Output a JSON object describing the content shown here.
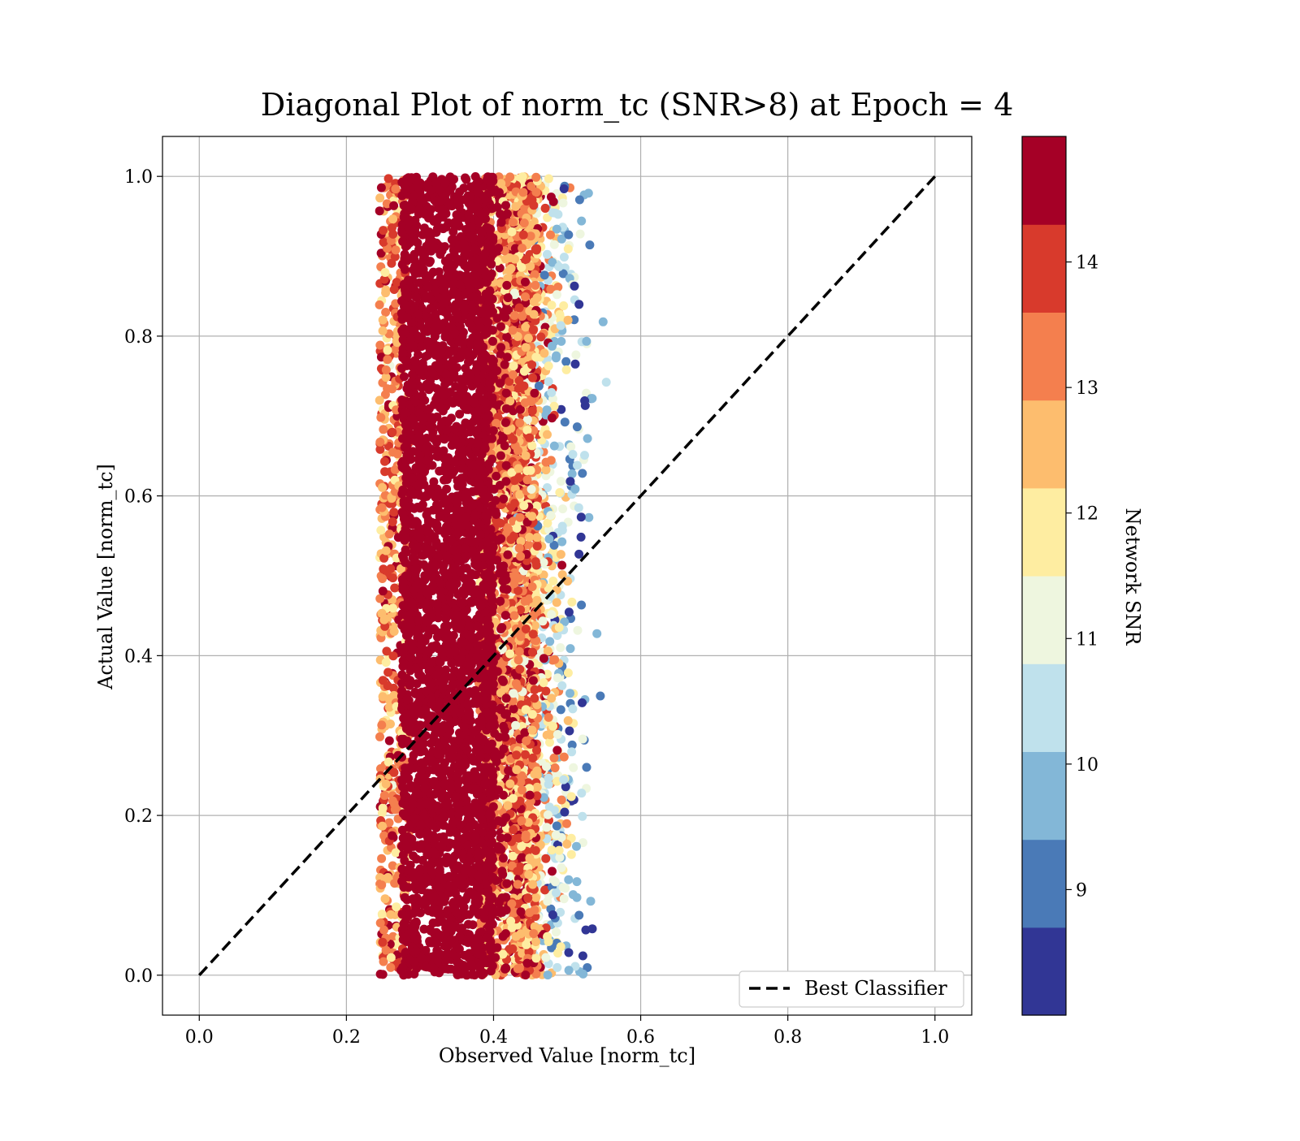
{
  "chart_data": {
    "type": "scatter",
    "title": "Diagonal Plot of norm_tc (SNR>8) at Epoch = 4",
    "xlabel": "Observed Value [norm_tc]",
    "ylabel": "Actual Value [norm_tc]",
    "xlim": [
      -0.05,
      1.05
    ],
    "ylim": [
      -0.05,
      1.05
    ],
    "xticks": [
      "0.0",
      "0.2",
      "0.4",
      "0.6",
      "0.8",
      "1.0"
    ],
    "yticks": [
      "0.0",
      "0.2",
      "0.4",
      "0.6",
      "0.8",
      "1.0"
    ],
    "grid": true,
    "legend": {
      "position": "lower-right",
      "entries": [
        "Best Classifier"
      ]
    },
    "reference_line": {
      "name": "Best Classifier",
      "x": [
        0.0,
        1.0
      ],
      "y": [
        0.0,
        1.0
      ],
      "style": "dashed",
      "color": "#000000"
    },
    "scatter_region": {
      "x_range": [
        0.24,
        0.59
      ],
      "y_range": [
        0.0,
        1.0
      ],
      "dense_core_x": [
        0.27,
        0.4
      ],
      "note_high_snr_left": true
    },
    "colorbar": {
      "label": "Network SNR",
      "range": [
        8.0,
        15.0
      ],
      "ticks": [
        "9",
        "10",
        "11",
        "12",
        "13",
        "14"
      ],
      "tick_values": [
        9,
        10,
        11,
        12,
        13,
        14
      ],
      "colors": [
        "#313695",
        "#4575b4",
        "#74add1",
        "#abd9e9",
        "#e0f3f8",
        "#ffffbf",
        "#fee090",
        "#fdae61",
        "#f46d43",
        "#d73027",
        "#a50026"
      ],
      "bins": [
        "#313695",
        "#4a7ab7",
        "#83b7d7",
        "#bfe1ec",
        "#eef6df",
        "#feeda1",
        "#fdbd6e",
        "#f47f4e",
        "#d83a2c",
        "#a50026"
      ]
    },
    "point_colors_by_snr": [
      "#313695",
      "#4a7ab7",
      "#83b7d7",
      "#bfe1ec",
      "#eef6df",
      "#feeda1",
      "#fdbd6e",
      "#f47f4e",
      "#d83a2c",
      "#a50026"
    ]
  }
}
